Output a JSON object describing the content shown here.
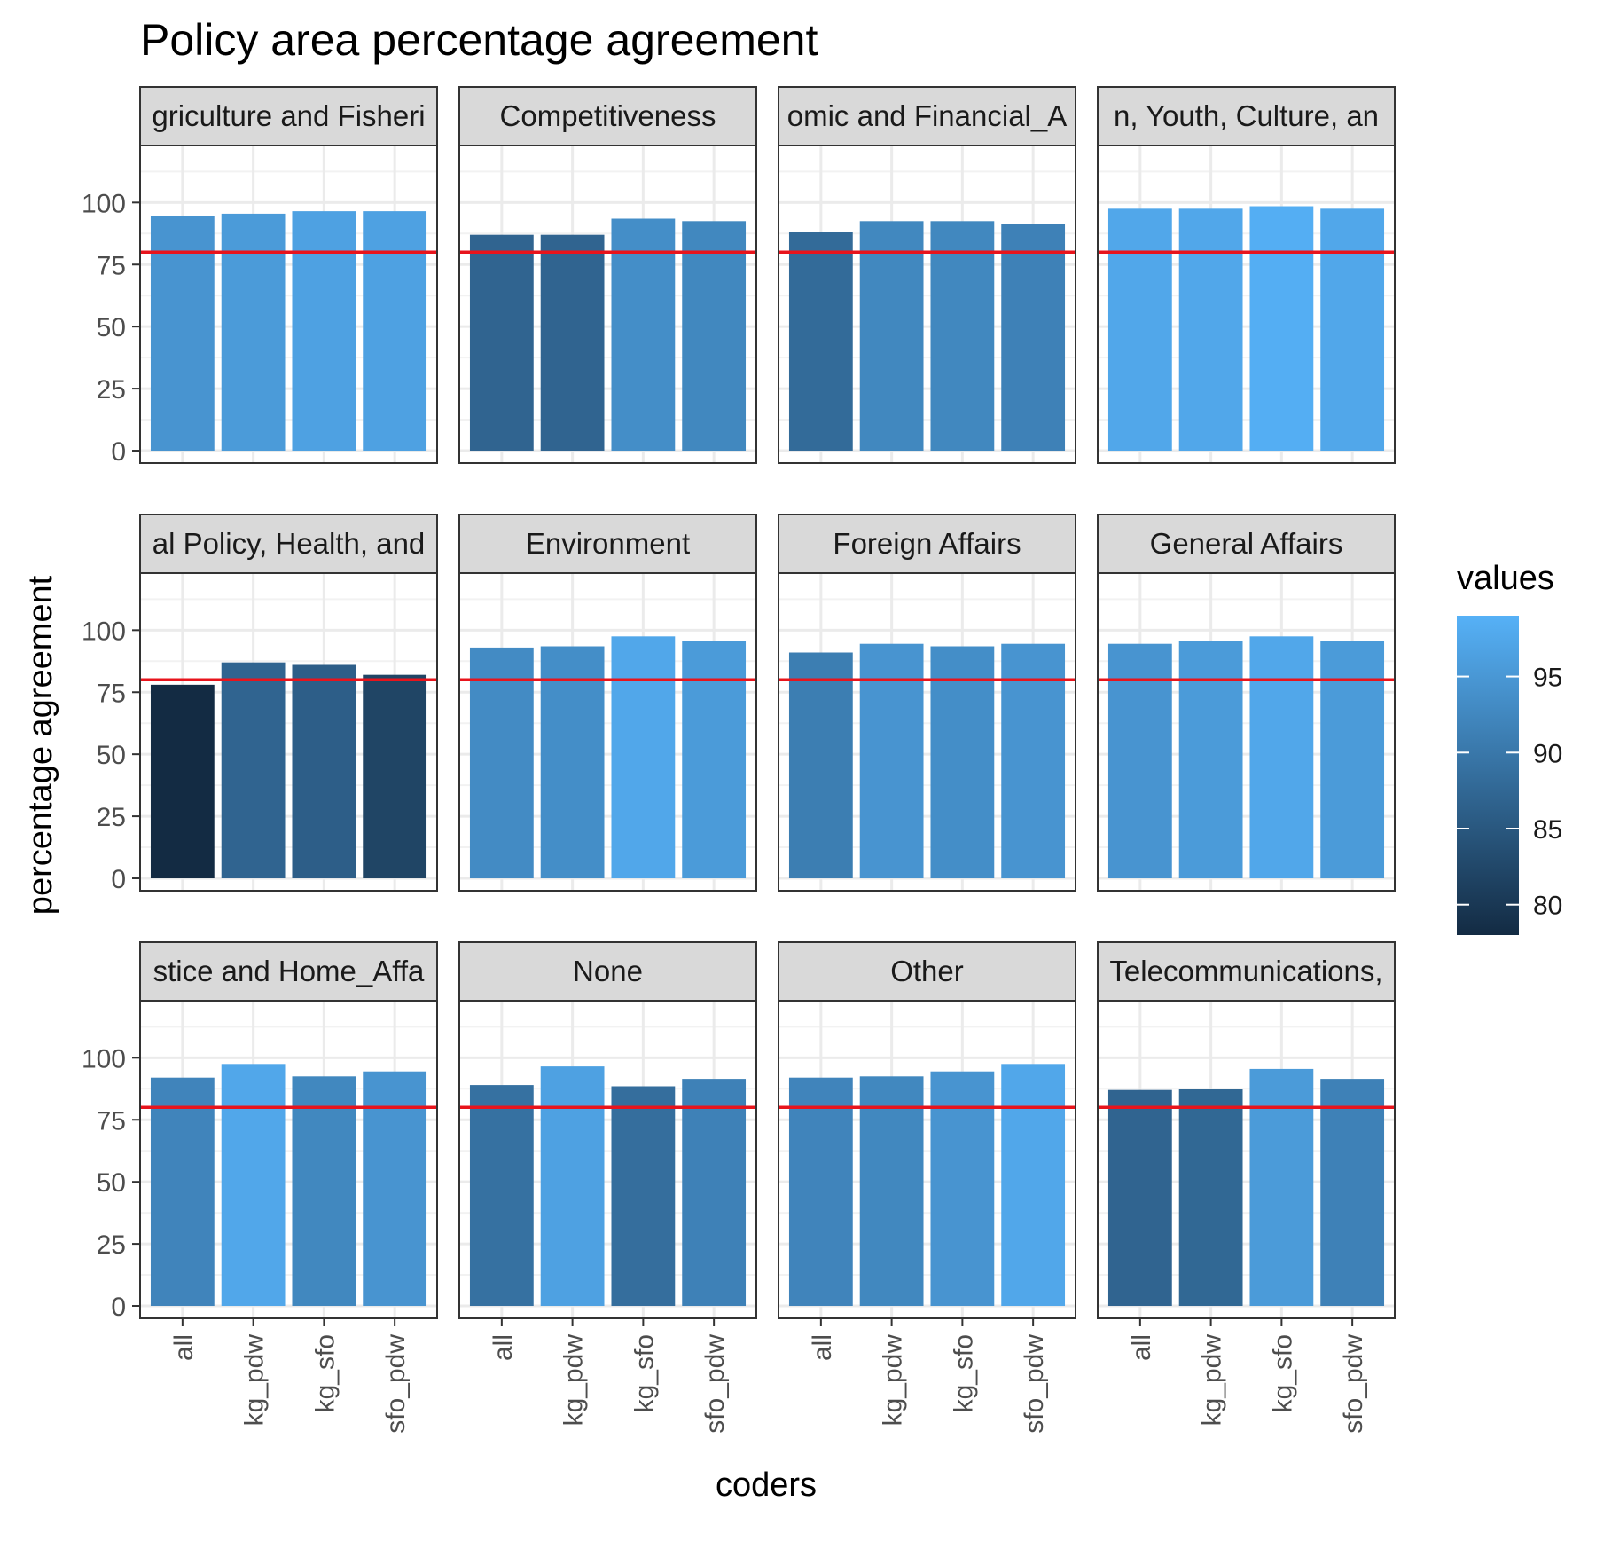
{
  "chart_data": {
    "type": "bar",
    "title": "Policy area percentage agreement",
    "xlabel": "coders",
    "ylabel": "percentage agreement",
    "categories": [
      "all",
      "kg_pdw",
      "kg_sfo",
      "sfo_pdw"
    ],
    "ylim": [
      0,
      100
    ],
    "yticks": [
      0,
      25,
      50,
      75,
      100
    ],
    "reference_line": {
      "y": 80,
      "color": "#e8141c"
    },
    "grid": true,
    "legend": {
      "title": "values",
      "placement": "right",
      "ticks": [
        80,
        85,
        90,
        95
      ],
      "range": [
        78,
        99
      ],
      "color_low": "#132b43",
      "color_high": "#56b1f7"
    },
    "facets": [
      {
        "label": "griculture and Fisheri",
        "values": [
          94.5,
          95.5,
          96.5,
          96.5
        ]
      },
      {
        "label": "Competitiveness",
        "values": [
          87,
          87,
          93.5,
          92.5
        ]
      },
      {
        "label": "omic and Financial_A",
        "values": [
          88,
          92.5,
          92.5,
          91.5
        ]
      },
      {
        "label": "n, Youth, Culture, an",
        "values": [
          97.5,
          97.5,
          98.5,
          97.5
        ]
      },
      {
        "label": "al Policy, Health, and",
        "values": [
          78,
          87,
          86,
          82
        ]
      },
      {
        "label": "Environment",
        "values": [
          93,
          93.5,
          97.5,
          95.5
        ]
      },
      {
        "label": "Foreign Affairs",
        "values": [
          91,
          94.5,
          93.5,
          94.5
        ]
      },
      {
        "label": "General Affairs",
        "values": [
          94.5,
          95.5,
          97.5,
          95.5
        ]
      },
      {
        "label": "stice and Home_Affa",
        "values": [
          92,
          97.5,
          92.5,
          94.5
        ]
      },
      {
        "label": "None",
        "values": [
          89,
          96.5,
          88.5,
          91.5
        ]
      },
      {
        "label": "Other",
        "values": [
          92,
          92.5,
          94.5,
          97.5
        ]
      },
      {
        "label": "Telecommunications,",
        "values": [
          87,
          87.5,
          95.5,
          91.5
        ]
      }
    ]
  }
}
